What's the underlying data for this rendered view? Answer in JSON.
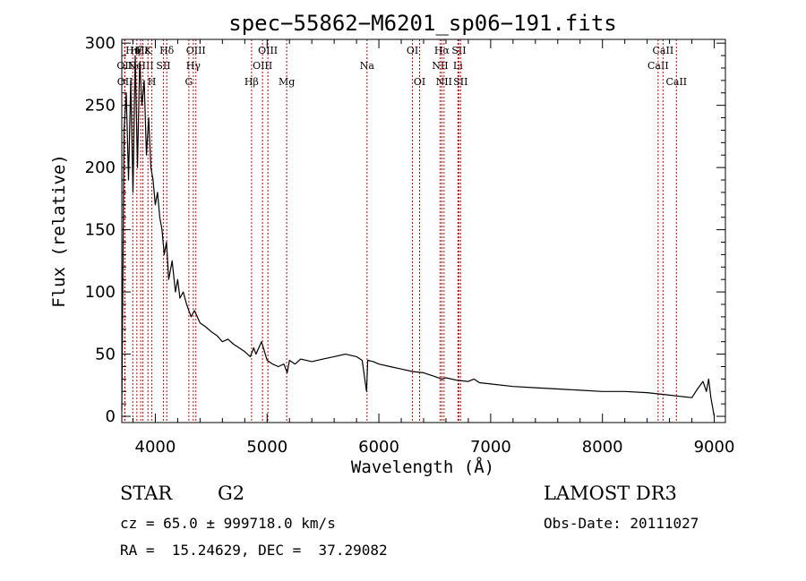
{
  "chart_data": {
    "type": "line",
    "title": "spec−55862−M6201_sp06−191.fits",
    "xlabel": "Wavelength (Å)",
    "ylabel": "Flux (relative)",
    "xlim": [
      3700,
      9100
    ],
    "ylim": [
      -5,
      303
    ],
    "x_ticks": [
      4000,
      5000,
      6000,
      7000,
      8000,
      9000
    ],
    "y_ticks": [
      0,
      50,
      100,
      150,
      200,
      250,
      300
    ],
    "series": [
      {
        "name": "flux",
        "x": [
          3700,
          3720,
          3740,
          3760,
          3780,
          3800,
          3820,
          3840,
          3860,
          3880,
          3900,
          3920,
          3940,
          3960,
          3980,
          4000,
          4020,
          4040,
          4060,
          4080,
          4100,
          4120,
          4150,
          4180,
          4200,
          4220,
          4250,
          4280,
          4300,
          4320,
          4350,
          4400,
          4450,
          4500,
          4550,
          4600,
          4650,
          4700,
          4750,
          4800,
          4850,
          4880,
          4900,
          4950,
          5000,
          5050,
          5100,
          5150,
          5180,
          5200,
          5250,
          5300,
          5400,
          5500,
          5600,
          5700,
          5800,
          5850,
          5890,
          5900,
          5950,
          6000,
          6100,
          6200,
          6300,
          6400,
          6500,
          6563,
          6600,
          6700,
          6800,
          6850,
          6900,
          7000,
          7200,
          7400,
          7600,
          7800,
          8000,
          8200,
          8400,
          8500,
          8600,
          8700,
          8800,
          8850,
          8900,
          8930,
          8950,
          8970,
          9000
        ],
        "y": [
          5,
          230,
          260,
          190,
          270,
          180,
          290,
          200,
          285,
          250,
          270,
          210,
          240,
          200,
          190,
          170,
          180,
          160,
          150,
          130,
          140,
          110,
          125,
          100,
          110,
          95,
          100,
          90,
          85,
          80,
          85,
          75,
          72,
          68,
          65,
          60,
          62,
          58,
          55,
          52,
          48,
          55,
          50,
          60,
          45,
          42,
          40,
          42,
          35,
          45,
          42,
          46,
          44,
          46,
          48,
          50,
          48,
          45,
          20,
          45,
          44,
          42,
          40,
          38,
          36,
          35,
          32,
          30,
          31,
          29,
          28,
          30,
          27,
          26,
          24,
          23,
          22,
          21,
          20,
          20,
          19,
          18,
          17,
          16,
          15,
          22,
          28,
          20,
          30,
          15,
          0
        ]
      }
    ],
    "lines": [
      {
        "wl": 3726,
        "label": "OII",
        "row": 2
      },
      {
        "wl": 3729,
        "label": "OII",
        "row": 3
      },
      {
        "wl": 3798,
        "label": "Hη",
        "row": 1
      },
      {
        "wl": 3835,
        "label": "Hζ",
        "row": 1
      },
      {
        "wl": 3869,
        "label": "NeIII",
        "row": 2
      },
      {
        "wl": 3889,
        "label": "Hε",
        "row": 1
      },
      {
        "wl": 3934,
        "label": "K",
        "row": 1
      },
      {
        "wl": 3969,
        "label": "H",
        "row": 3
      },
      {
        "wl": 4072,
        "label": "SII",
        "row": 2
      },
      {
        "wl": 4102,
        "label": "Hδ",
        "row": 1
      },
      {
        "wl": 4300,
        "label": "G",
        "row": 3
      },
      {
        "wl": 4340,
        "label": "Hγ",
        "row": 2
      },
      {
        "wl": 4363,
        "label": "OIII",
        "row": 1
      },
      {
        "wl": 4861,
        "label": "Hβ",
        "row": 3
      },
      {
        "wl": 4959,
        "label": "OIII",
        "row": 2
      },
      {
        "wl": 5007,
        "label": "OIII",
        "row": 1
      },
      {
        "wl": 5175,
        "label": "Mg",
        "row": 3
      },
      {
        "wl": 5894,
        "label": "Na",
        "row": 2
      },
      {
        "wl": 6300,
        "label": "OI",
        "row": 1
      },
      {
        "wl": 6364,
        "label": "OI",
        "row": 3
      },
      {
        "wl": 6548,
        "label": "NII",
        "row": 2
      },
      {
        "wl": 6563,
        "label": "Hα",
        "row": 1
      },
      {
        "wl": 6583,
        "label": "NII",
        "row": 3
      },
      {
        "wl": 6707,
        "label": "Li",
        "row": 2
      },
      {
        "wl": 6716,
        "label": "SII",
        "row": 1
      },
      {
        "wl": 6731,
        "label": "SII",
        "row": 3
      },
      {
        "wl": 8498,
        "label": "CaII",
        "row": 2
      },
      {
        "wl": 8542,
        "label": "CaII",
        "row": 1
      },
      {
        "wl": 8662,
        "label": "CaII",
        "row": 3
      }
    ]
  },
  "info": {
    "class": "STAR",
    "subclass": "G2",
    "survey": "LAMOST DR3",
    "cz": "cz = 65.0 ± 999718.0 km/s",
    "obs_date": "Obs-Date: 20111027",
    "coords": "RA =  15.24629, DEC =  37.29082"
  },
  "colors": {
    "line_marker": "#cc0000",
    "spectrum": "#000000"
  }
}
